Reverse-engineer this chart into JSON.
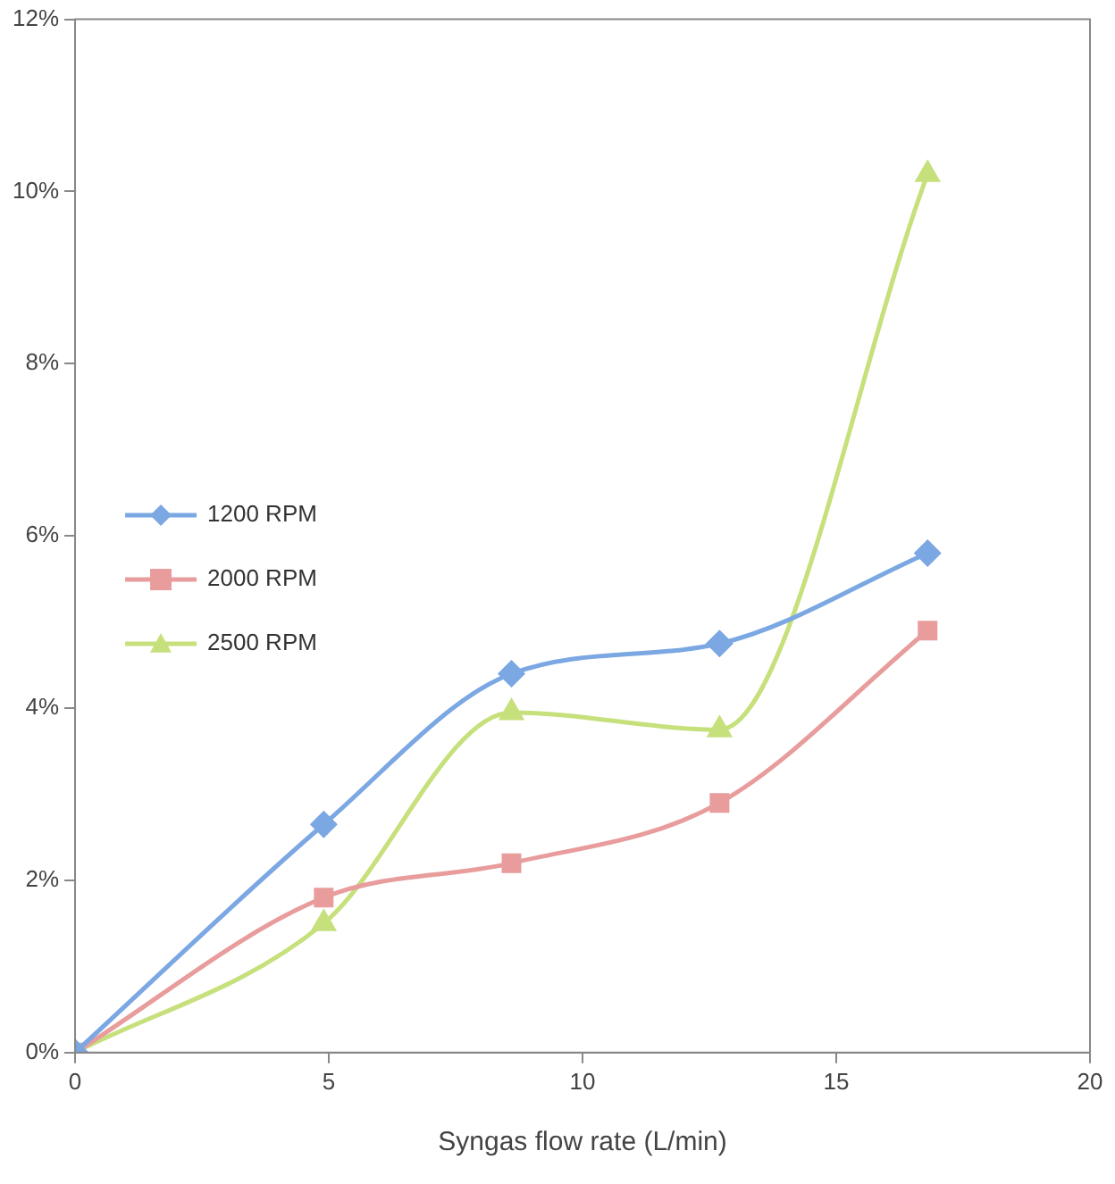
{
  "chart_data": {
    "type": "line",
    "xlabel": "Syngas flow rate (L/min)",
    "xlim": [
      0,
      20
    ],
    "xticks": [
      0,
      5,
      10,
      15,
      20
    ],
    "ylim": [
      0,
      12
    ],
    "yticks": [
      {
        "value": 0,
        "label": "0%"
      },
      {
        "value": 2,
        "label": "2%"
      },
      {
        "value": 4,
        "label": "4%"
      },
      {
        "value": 6,
        "label": "6%"
      },
      {
        "value": 8,
        "label": "8%"
      },
      {
        "value": 10,
        "label": "10%"
      },
      {
        "value": 12,
        "label": "12%"
      }
    ],
    "grid": false,
    "legend": "left",
    "series": [
      {
        "name": "1200 RPM",
        "color": "#7ba7e3",
        "marker": "diamond",
        "x": [
          0,
          4.9,
          8.6,
          12.7,
          16.8
        ],
        "values": [
          0,
          2.65,
          4.4,
          4.75,
          5.8
        ]
      },
      {
        "name": "2000 RPM",
        "color": "#e89c9c",
        "marker": "square",
        "x": [
          0,
          4.9,
          8.6,
          12.7,
          16.8
        ],
        "values": [
          0,
          1.8,
          2.2,
          2.9,
          4.9
        ]
      },
      {
        "name": "2500 RPM",
        "color": "#c6e07c",
        "marker": "triangle",
        "x": [
          0,
          4.9,
          8.6,
          12.7,
          16.8
        ],
        "values": [
          0,
          1.5,
          3.95,
          3.75,
          10.2
        ]
      }
    ]
  }
}
